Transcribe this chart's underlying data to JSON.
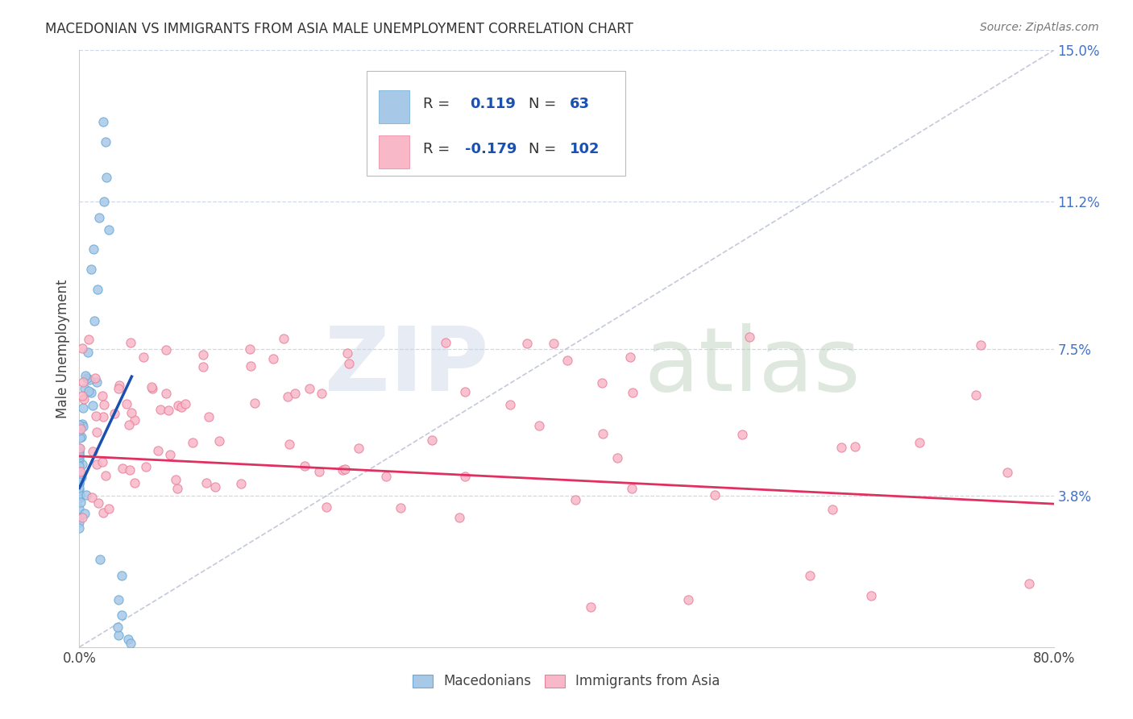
{
  "title": "MACEDONIAN VS IMMIGRANTS FROM ASIA MALE UNEMPLOYMENT CORRELATION CHART",
  "source": "Source: ZipAtlas.com",
  "ylabel": "Male Unemployment",
  "xlim": [
    0.0,
    0.8
  ],
  "ylim": [
    0.0,
    0.15
  ],
  "ytick_positions": [
    0.038,
    0.075,
    0.112,
    0.15
  ],
  "ytick_labels": [
    "3.8%",
    "7.5%",
    "11.2%",
    "15.0%"
  ],
  "mac_scatter_color": "#a8c8e8",
  "mac_scatter_edge": "#6aaad4",
  "asia_scatter_color": "#f8b8c8",
  "asia_scatter_edge": "#e8809a",
  "mac_trend_color": "#1a50b0",
  "asia_trend_color": "#e03060",
  "diagonal_color": "#b0b8cc",
  "background_color": "#ffffff",
  "grid_color": "#d0d8e8",
  "legend_box_color": "#aaaaaa",
  "R_value_color": "#1a50b0",
  "N_value_color": "#1a50b0",
  "right_tick_color": "#4472c4",
  "mac_trend_x0": 0.0,
  "mac_trend_x1": 0.043,
  "mac_trend_y0": 0.04,
  "mac_trend_y1": 0.068,
  "asia_trend_x0": 0.0,
  "asia_trend_x1": 0.8,
  "asia_trend_y0": 0.048,
  "asia_trend_y1": 0.036
}
